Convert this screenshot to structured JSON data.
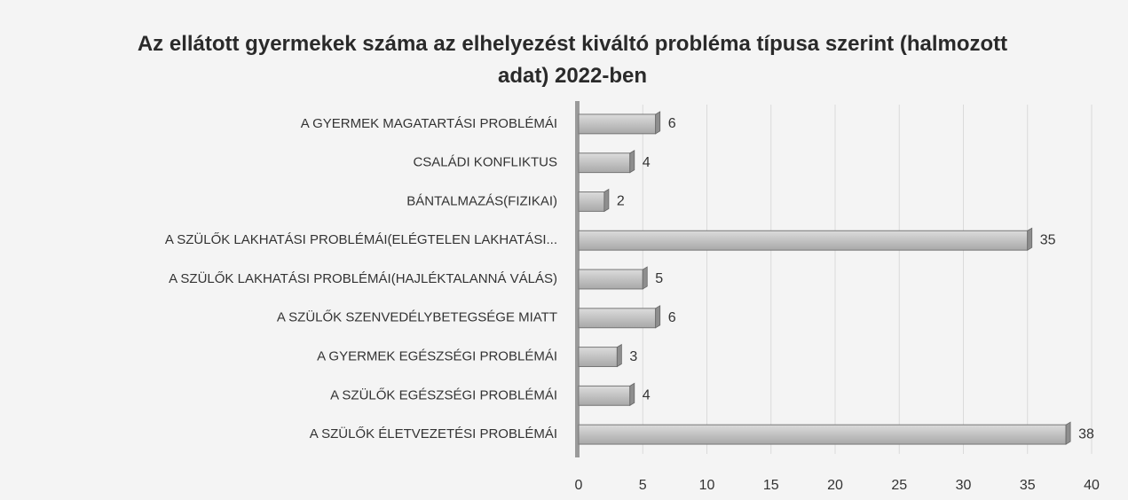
{
  "chart_data": {
    "type": "bar",
    "orientation": "horizontal",
    "title": "Az ellátott gyermekek száma az elhelyezést kiváltó probléma típusa szerint (halmozott adat) 2022-ben",
    "categories": [
      "A GYERMEK MAGATARTÁSI PROBLÉMÁI",
      "CSALÁDI KONFLIKTUS",
      "BÁNTALMAZÁS(FIZIKAI)",
      "A SZÜLŐK LAKHATÁSI PROBLÉMÁI(ELÉGTELEN LAKHATÁSI...",
      "A SZÜLŐK LAKHATÁSI PROBLÉMÁI(HAJLÉKTALANNÁ VÁLÁS)",
      "A SZÜLŐK SZENVEDÉLYBETEGSÉGE MIATT",
      "A GYERMEK EGÉSZSÉGI PROBLÉMÁI",
      "A SZÜLŐK EGÉSZSÉGI PROBLÉMÁI",
      "A SZÜLŐK ÉLETVEZETÉSI PROBLÉMÁI"
    ],
    "values": [
      6,
      4,
      2,
      35,
      5,
      6,
      3,
      4,
      38
    ],
    "color": "#c4c4c4",
    "xlim": [
      0,
      40
    ],
    "xticks": [
      0,
      5,
      10,
      15,
      20,
      25,
      30,
      35,
      40
    ],
    "grid": true
  }
}
